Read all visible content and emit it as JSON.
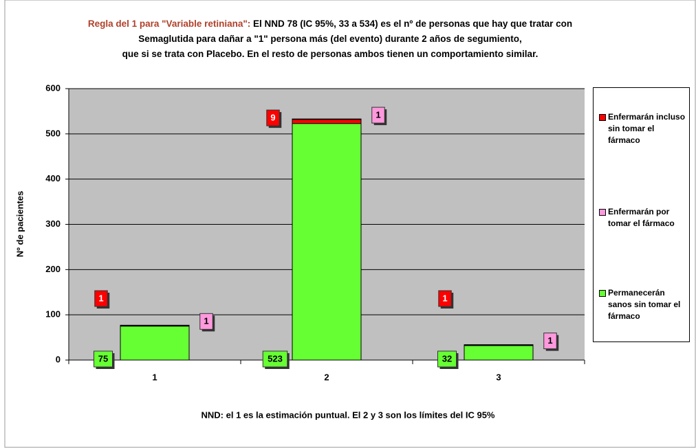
{
  "title_lead": "Regla del 1 para \"Variable retiniana\":",
  "chart_data": {
    "type": "stacked_bar",
    "title_lines": [
      "El NND 78 (IC 95%, 33 a 534) es el nº de personas que hay que tratar con",
      "Semaglutida para dañar a \"1\" persona más (del evento) durante 2 años de segumiento,",
      "que si se trata con Placebo. En el resto de personas ambos tienen un comportamiento similar."
    ],
    "x_label": "NND: el 1 es la estimación puntual.  El 2 y 3 son los límites del IC 95%",
    "y_label": "Nº de pacientes",
    "categories": [
      "1",
      "2",
      "3"
    ],
    "series": [
      {
        "name": "Enfermarán incluso sin tomar el fármaco",
        "color": "#ff0000",
        "values": [
          1,
          9,
          1
        ]
      },
      {
        "name": "Enfermarán por tomar el fármaco",
        "color": "#ff99dd",
        "values": [
          1,
          1,
          1
        ]
      },
      {
        "name": "Permanecerán sanos sin tomar el fármaco",
        "color": "#66ff33",
        "values": [
          75,
          523,
          32
        ]
      }
    ],
    "ylim": [
      0,
      600
    ],
    "yticks": [
      0,
      100,
      200,
      300,
      400,
      500,
      600
    ],
    "grid": true
  }
}
